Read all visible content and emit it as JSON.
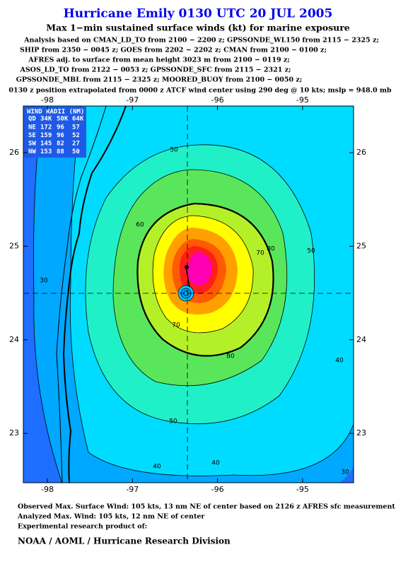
{
  "header": {
    "title": "Hurricane Emily 0130 UTC 20 JUL 2005",
    "subtitle": "Max 1−min sustained surface winds (kt) for marine exposure",
    "lines": [
      "Analysis based on  CMAN_LD_TO from 2100 − 2200 z;  GPSSONDE_WL150 from 2115 − 2325 z;",
      "SHIP from 2350 − 0045 z;  GOES from 2202 − 2202 z;  CMAN from 2100 − 0100 z;",
      "AFRES adj. to surface from mean height 3023 m from 2100 − 0119 z;",
      "ASOS_LD_TO from 2122 − 0053 z;  GPSSONDE_SFC from 2115 − 2321 z;",
      "GPSSONDE_MBL from 2115 − 2325 z;  MOORED_BUOY from 2100 − 0050 z;",
      "0130 z position extrapolated from 0000 z ATCF wind center using 290 deg @ 10 kts; mslp = 948.0 mb"
    ]
  },
  "map": {
    "lon_ticks": [
      -98,
      -97,
      -96,
      -95
    ],
    "lat_ticks": [
      26,
      25,
      24,
      23
    ],
    "wind_radii": {
      "title": "WIND RADII (NM)",
      "columns": [
        "QD",
        "34K",
        "50K",
        "64K"
      ],
      "rows": [
        [
          "NE",
          "172",
          "96",
          "57"
        ],
        [
          "SE",
          "159",
          "96",
          "52"
        ],
        [
          "SW",
          "145",
          "82",
          "27"
        ],
        [
          "NW",
          "153",
          "88",
          "50"
        ]
      ]
    },
    "contour_labels": [
      "50",
      "60",
      "70",
      "80",
      "50",
      "30",
      "70",
      "80",
      "50",
      "40",
      "40",
      "40",
      "30"
    ]
  },
  "footer": {
    "lines": [
      "Observed Max. Surface Wind: 105 kts, 13 nm NE of center based on 2126 z AFRES sfc measurement",
      "Analyzed Max. Wind: 105 kts, 12 nm NE of center",
      "Experimental research product of:"
    ],
    "org": "NOAA / AOML / Hurricane Research Division"
  }
}
